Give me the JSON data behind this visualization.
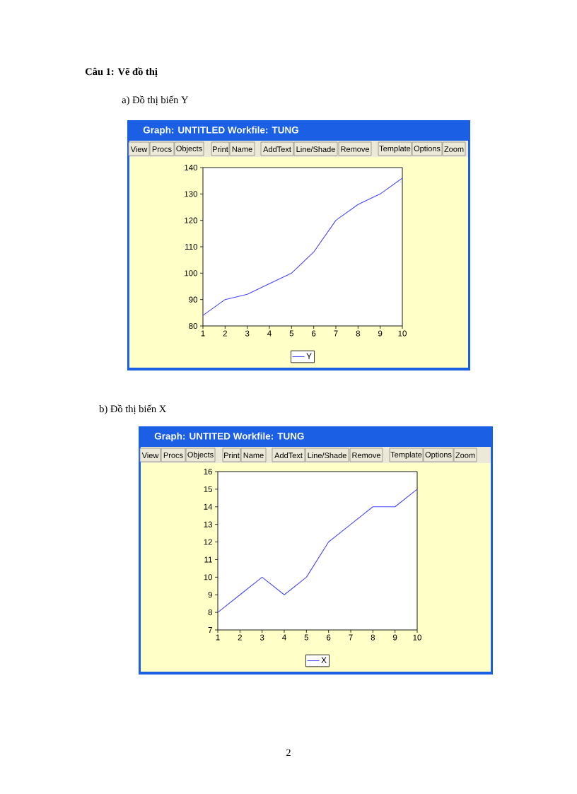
{
  "chart_data": [
    {
      "type": "line",
      "title": "Câu 1: Vẽ đồ thị",
      "subtitle": "a) Đồ thị biến Y",
      "annotations": [
        "Graph: UNTITLED Workfile: TUNG",
        "View",
        "Procs",
        "Objects",
        "Print",
        "Name",
        "AddText",
        "Line/Shade",
        "Remove",
        "Template",
        "Options",
        "Zoom"
      ],
      "x": [
        1,
        2,
        3,
        4,
        5,
        6,
        7,
        8,
        9,
        10
      ],
      "series": [
        {
          "name": "Y",
          "color": "#4646ff",
          "values": [
            84,
            90,
            92,
            96,
            100,
            108,
            120,
            126,
            130,
            136
          ]
        }
      ],
      "xlim": [
        1,
        10
      ],
      "ylim": [
        80,
        140
      ],
      "xticks": [
        1,
        2,
        3,
        4,
        5,
        6,
        7,
        8,
        9,
        10
      ],
      "yticks": [
        80,
        90,
        100,
        110,
        120,
        130,
        140
      ],
      "legend": "bottom"
    },
    {
      "type": "line",
      "title": "b) Đồ thị biến X",
      "annotations": [
        "Graph: UNTITED Workfile: TUNG",
        "View",
        "Procs",
        "Objects",
        "Print",
        "Name",
        "AddText",
        "Line/Shade",
        "Remove",
        "Template",
        "Options",
        "Zoom",
        "2"
      ],
      "x": [
        1,
        2,
        3,
        4,
        5,
        6,
        7,
        8,
        9,
        10
      ],
      "series": [
        {
          "name": "X",
          "color": "#4646ff",
          "values": [
            8,
            9,
            10,
            9,
            10,
            12,
            13,
            14,
            14,
            15
          ]
        }
      ],
      "xlim": [
        1,
        10
      ],
      "ylim": [
        7,
        16
      ],
      "xticks": [
        1,
        2,
        3,
        4,
        5,
        6,
        7,
        8,
        9,
        10
      ],
      "yticks": [
        7,
        8,
        9,
        10,
        11,
        12,
        13,
        14,
        15,
        16
      ],
      "legend": "bottom"
    }
  ]
}
